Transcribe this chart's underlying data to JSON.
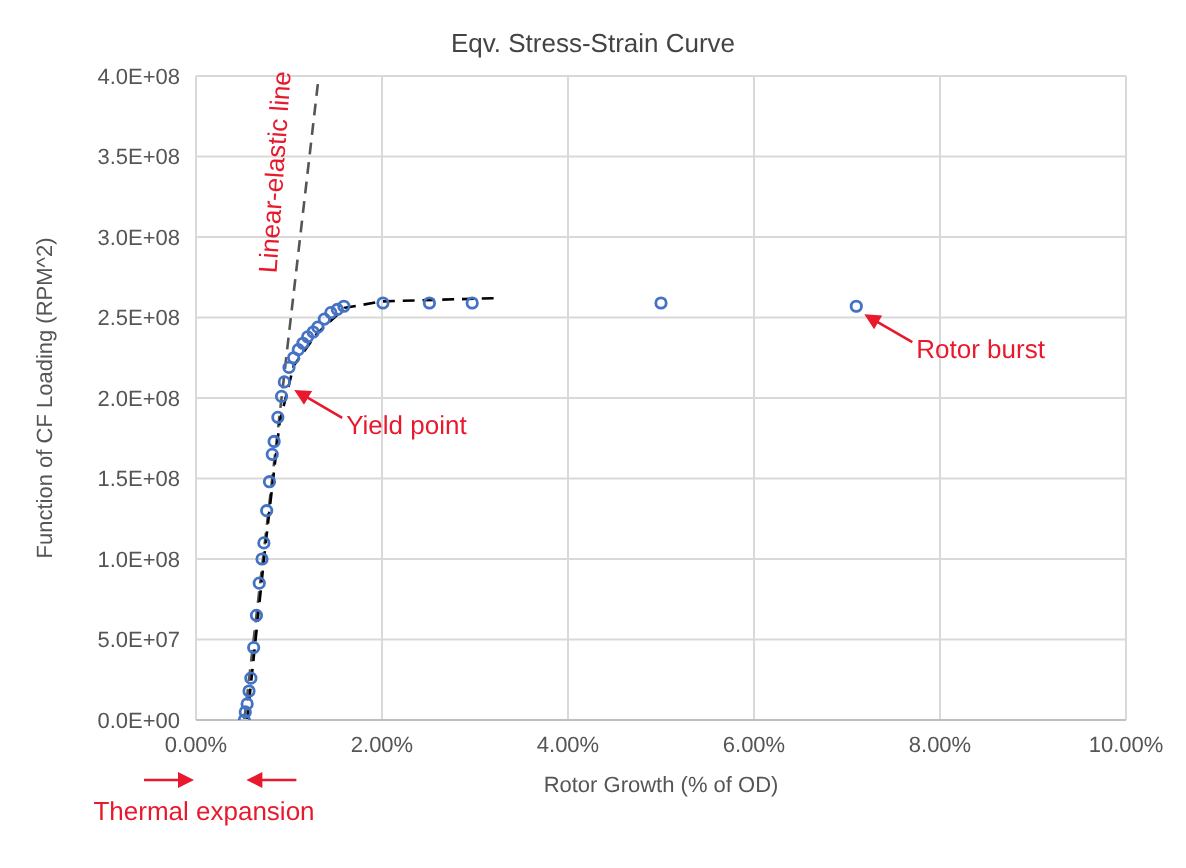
{
  "chart_data": {
    "type": "scatter",
    "title": "Eqv. Stress-Strain Curve",
    "xlabel": "Rotor Growth (% of OD)",
    "ylabel": "Function of CF Loading (RPM^2)",
    "xlim": [
      0,
      10
    ],
    "xticks": [
      {
        "value": 0,
        "label": "0.00%"
      },
      {
        "value": 2,
        "label": "2.00%"
      },
      {
        "value": 4,
        "label": "4.00%"
      },
      {
        "value": 6,
        "label": "6.00%"
      },
      {
        "value": 8,
        "label": "8.00%"
      },
      {
        "value": 10,
        "label": "10.00%"
      }
    ],
    "ylim": [
      0,
      400000000
    ],
    "yticks": [
      {
        "value": 0,
        "label": "0.0E+00"
      },
      {
        "value": 50000000,
        "label": "5.0E+07"
      },
      {
        "value": 100000000,
        "label": "1.0E+08"
      },
      {
        "value": 150000000,
        "label": "1.5E+08"
      },
      {
        "value": 200000000,
        "label": "2.0E+08"
      },
      {
        "value": 250000000,
        "label": "2.5E+08"
      },
      {
        "value": 300000000,
        "label": "3.0E+08"
      },
      {
        "value": 350000000,
        "label": "3.5E+08"
      },
      {
        "value": 400000000,
        "label": "4.0E+08"
      }
    ],
    "grid": true,
    "legend": false,
    "marker": "circle",
    "series": [
      {
        "color": "#4472c4",
        "x": [
          0.52,
          0.53,
          0.55,
          0.57,
          0.59,
          0.62,
          0.65,
          0.68,
          0.71,
          0.73,
          0.76,
          0.79,
          0.82,
          0.84,
          0.88,
          0.92,
          0.95,
          1.0,
          1.05,
          1.1,
          1.15,
          1.2,
          1.26,
          1.31,
          1.38,
          1.45,
          1.52,
          1.59,
          2.01,
          2.51,
          2.97,
          5.0,
          7.1
        ],
        "values": [
          0,
          5000000,
          10000000,
          18000000,
          26000000,
          45000000,
          65000000,
          85000000,
          100000000,
          110000000,
          130000000,
          148000000,
          165000000,
          173000000,
          188000000,
          201000000,
          210000000,
          219000000,
          225000000,
          230000000,
          234000000,
          238000000,
          241000000,
          244000000,
          249000000,
          253000000,
          255000000,
          257000000,
          259000000,
          259000000,
          259000000,
          259000000,
          257000000
        ]
      },
      {
        "type": "line",
        "color": "#555555",
        "line_style": "dashed",
        "marker": "none",
        "x": [
          0.52,
          1.31
        ],
        "values": [
          0,
          395000000
        ]
      },
      {
        "type": "line",
        "color": "#000000",
        "line_style": "dashed",
        "marker": "none",
        "x": [
          0.55,
          0.75,
          0.9,
          1.05,
          1.3,
          1.6,
          2.0,
          3.2
        ],
        "values": [
          0,
          110000000,
          185000000,
          220000000,
          240000000,
          256000000,
          260000000,
          262000000
        ]
      }
    ],
    "annotations": [
      {
        "text": "Linear-elastic line",
        "x": 1.2,
        "y": 340000000
      },
      {
        "text": "Yield point",
        "x": 0.97,
        "y": 210000000
      },
      {
        "text": "Rotor burst",
        "x": 7.1,
        "y": 257000000
      },
      {
        "text": "Thermal expansion",
        "x": 0.52,
        "y": 0
      }
    ]
  }
}
